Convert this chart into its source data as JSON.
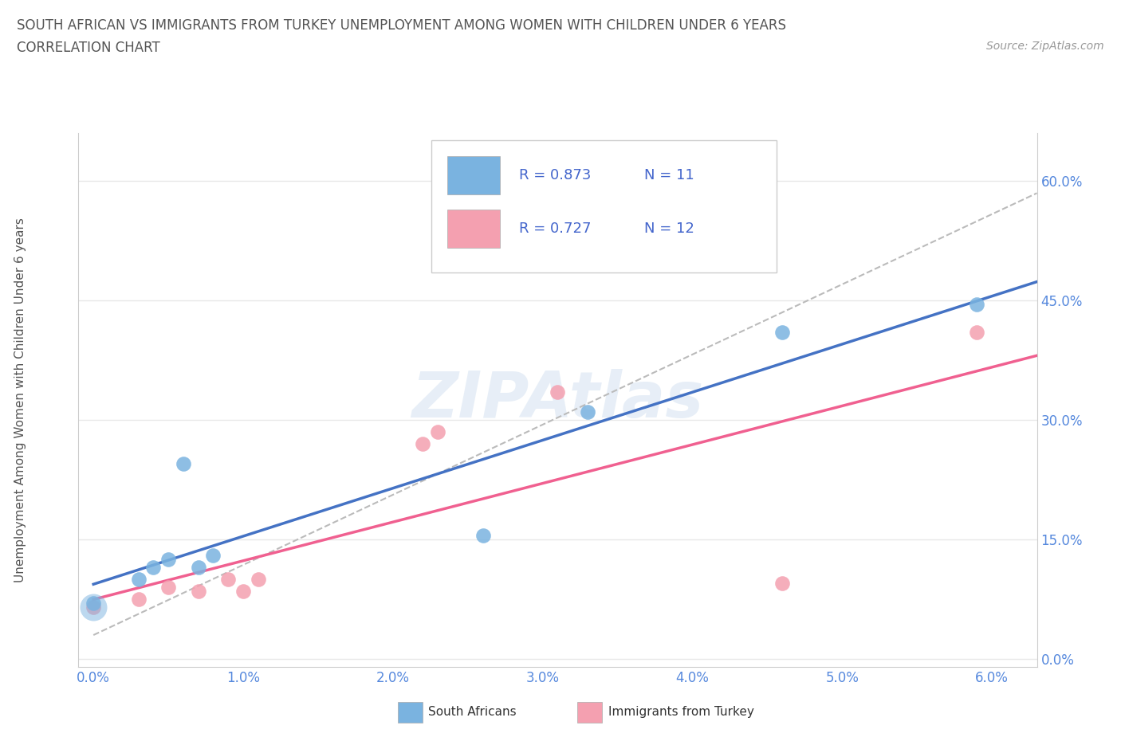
{
  "title_line1": "SOUTH AFRICAN VS IMMIGRANTS FROM TURKEY UNEMPLOYMENT AMONG WOMEN WITH CHILDREN UNDER 6 YEARS",
  "title_line2": "CORRELATION CHART",
  "source": "Source: ZipAtlas.com",
  "ylabel": "Unemployment Among Women with Children Under 6 years",
  "watermark": "ZIPAtlas",
  "r_sa": 0.873,
  "n_sa": 11,
  "r_turk": 0.727,
  "n_turk": 12,
  "south_africans_x": [
    0.0,
    0.003,
    0.004,
    0.005,
    0.006,
    0.007,
    0.008,
    0.026,
    0.033,
    0.046,
    0.059
  ],
  "south_africans_y": [
    0.07,
    0.1,
    0.115,
    0.125,
    0.245,
    0.115,
    0.13,
    0.155,
    0.31,
    0.41,
    0.445
  ],
  "immigrants_turkey_x": [
    0.0,
    0.003,
    0.005,
    0.007,
    0.009,
    0.01,
    0.011,
    0.022,
    0.023,
    0.031,
    0.046,
    0.059
  ],
  "immigrants_turkey_y": [
    0.065,
    0.075,
    0.09,
    0.085,
    0.1,
    0.085,
    0.1,
    0.27,
    0.285,
    0.335,
    0.095,
    0.41
  ],
  "color_sa": "#7ab3e0",
  "color_turk": "#f4a0b0",
  "line_color_sa": "#4472c4",
  "line_color_turk": "#f06090",
  "dashed_line_color": "#bbbbbb",
  "grid_color": "#e8e8e8",
  "bg_color": "#ffffff",
  "title_color": "#555555",
  "ytick_vals": [
    0.0,
    0.15,
    0.3,
    0.45,
    0.6
  ],
  "ytick_labels": [
    "0.0%",
    "15.0%",
    "30.0%",
    "45.0%",
    "60.0%"
  ],
  "xtick_vals": [
    0.0,
    0.01,
    0.02,
    0.03,
    0.04,
    0.05,
    0.06
  ],
  "xtick_labels": [
    "0.0%",
    "1.0%",
    "2.0%",
    "3.0%",
    "4.0%",
    "5.0%",
    "6.0%"
  ],
  "xlim": [
    -0.001,
    0.063
  ],
  "ylim": [
    -0.01,
    0.66
  ]
}
